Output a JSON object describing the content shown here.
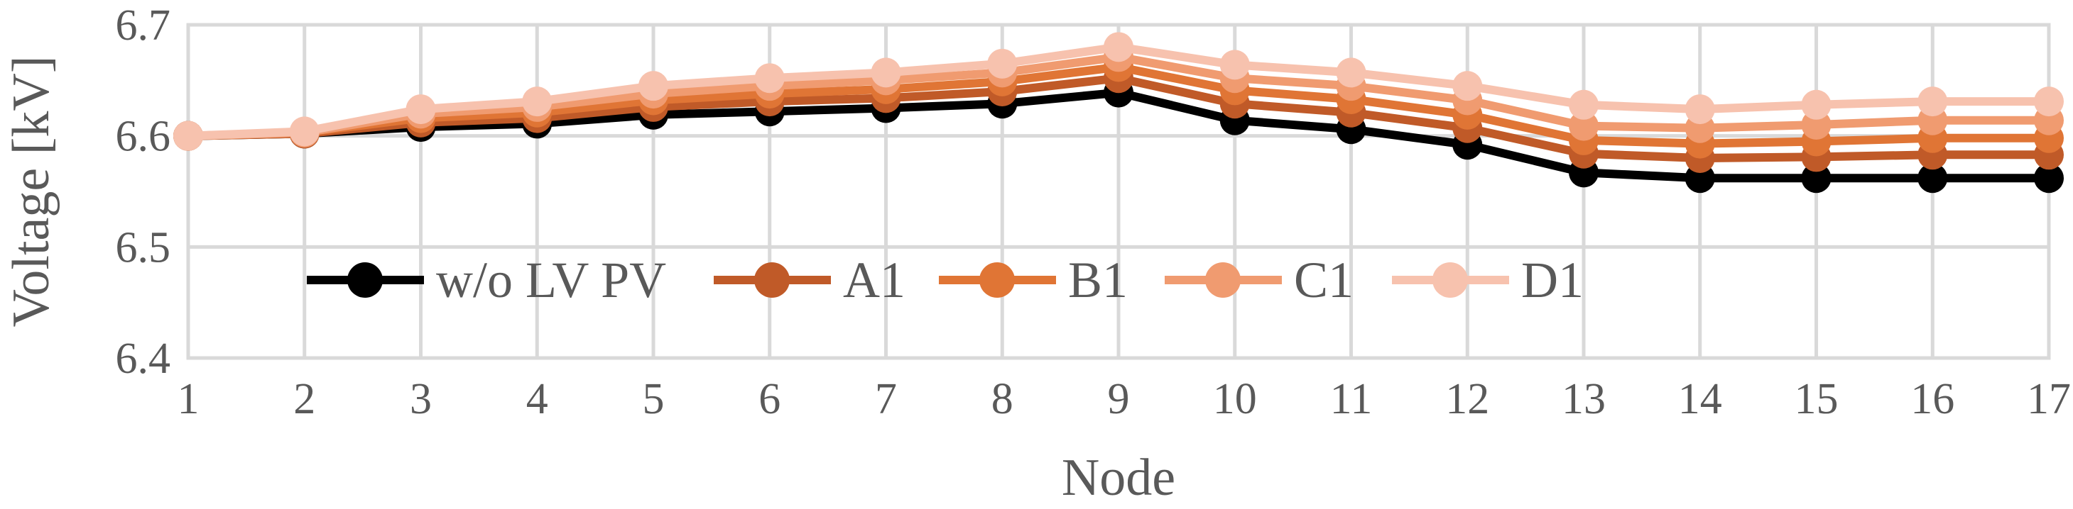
{
  "chart_data": {
    "type": "line",
    "title": "",
    "xlabel": "Node",
    "ylabel": "Voltage [kV]",
    "x": [
      1,
      2,
      3,
      4,
      5,
      6,
      7,
      8,
      9,
      10,
      11,
      12,
      13,
      14,
      15,
      16,
      17
    ],
    "x_tick_labels": [
      "1",
      "2",
      "3",
      "4",
      "5",
      "6",
      "7",
      "8",
      "9",
      "10",
      "11",
      "12",
      "13",
      "14",
      "15",
      "16",
      "17"
    ],
    "ylim": [
      6.4,
      6.7
    ],
    "y_ticks": [
      6.4,
      6.5,
      6.6,
      6.7
    ],
    "y_tick_labels": [
      "6.4",
      "6.5",
      "6.6",
      "6.7"
    ],
    "grid": true,
    "legend_position": "bottom-left inside plot",
    "series": [
      {
        "name": "w/o LV PV",
        "color": "#000000",
        "values": [
          6.6,
          6.602,
          6.608,
          6.611,
          6.619,
          6.622,
          6.625,
          6.629,
          6.639,
          6.614,
          6.606,
          6.592,
          6.567,
          6.562,
          6.562,
          6.562,
          6.562
        ]
      },
      {
        "name": "A1",
        "color": "#C05A28",
        "values": [
          6.6,
          6.602,
          6.612,
          6.616,
          6.626,
          6.631,
          6.634,
          6.64,
          6.652,
          6.629,
          6.621,
          6.607,
          6.584,
          6.58,
          6.581,
          6.583,
          6.583
        ]
      },
      {
        "name": "B1",
        "color": "#E07535",
        "values": [
          6.6,
          6.603,
          6.616,
          6.621,
          6.632,
          6.638,
          6.642,
          6.649,
          6.662,
          6.641,
          6.633,
          6.619,
          6.596,
          6.593,
          6.595,
          6.598,
          6.598
        ]
      },
      {
        "name": "C1",
        "color": "#F09B70",
        "values": [
          6.6,
          6.603,
          6.62,
          6.626,
          6.638,
          6.645,
          6.65,
          6.657,
          6.671,
          6.652,
          6.645,
          6.632,
          6.609,
          6.607,
          6.61,
          6.614,
          6.614
        ]
      },
      {
        "name": "D1",
        "color": "#F7C2AE",
        "values": [
          6.6,
          6.604,
          6.624,
          6.631,
          6.645,
          6.652,
          6.657,
          6.665,
          6.68,
          6.664,
          6.657,
          6.645,
          6.628,
          6.624,
          6.628,
          6.631,
          6.631
        ]
      }
    ]
  }
}
